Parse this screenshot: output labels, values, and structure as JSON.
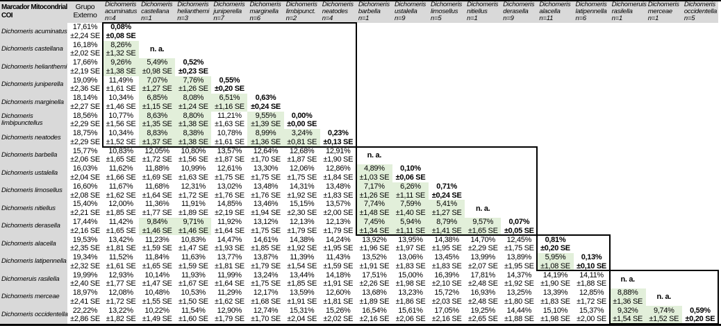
{
  "table": {
    "corner_header": "Marcador Mitocondrial COI",
    "outgroup_header": "Grupo Externo",
    "na_label": "n. a.",
    "se_suffix": "SE",
    "highlight_rule_percent_below": 10,
    "colors": {
      "header_gray": "#d9d9d9",
      "highlight_green": "#e2efda",
      "border_black": "#000000",
      "cell_white": "#ffffff"
    },
    "species": [
      {
        "genus": "Dichomeris",
        "epithet": "acuminatus",
        "n": "n=4",
        "row_label": [
          "Dichomeris acuminatus"
        ]
      },
      {
        "genus": "Dichomeris",
        "epithet": "castellana",
        "n": "n=1",
        "row_label": [
          "Dichomeris castellana"
        ]
      },
      {
        "genus": "Dichomeris",
        "epithet": "helianthemi",
        "n": "n=3",
        "row_label": [
          "Dichomeris helianthemi"
        ]
      },
      {
        "genus": "Dichomeris",
        "epithet": "juniperella",
        "n": "n=7",
        "row_label": [
          "Dichomeris juniperella"
        ]
      },
      {
        "genus": "Dichomeris",
        "epithet": "marginella",
        "n": "n=6",
        "row_label": [
          "Dichomeris marginella"
        ]
      },
      {
        "genus": "Dichomeris",
        "epithet": "limbipunct.",
        "n": "n=2",
        "row_label": [
          "Dichomeris",
          "limbipunctellus"
        ]
      },
      {
        "genus": "Dichomeris",
        "epithet": "neatodes",
        "n": "n=4",
        "row_label": [
          "Dichomeris neatodes"
        ]
      },
      {
        "genus": "Dichomeris",
        "epithet": "barbella",
        "n": "n=1",
        "row_label": [
          "Dichomeris barbella"
        ]
      },
      {
        "genus": "Dichomeris",
        "epithet": "ustalella",
        "n": "n=9",
        "row_label": [
          "Dichomeris ustalella"
        ]
      },
      {
        "genus": "Dichomeris",
        "epithet": "limosellus",
        "n": "n=5",
        "row_label": [
          "Dichomeris limosellus"
        ]
      },
      {
        "genus": "Dichomeris",
        "epithet": "nitiellus",
        "n": "n=1",
        "row_label": [
          "Dichomeris nitiellus"
        ]
      },
      {
        "genus": "Dichomeris",
        "epithet": "derasella",
        "n": "n=9",
        "row_label": [
          "Dichomeris derasella"
        ]
      },
      {
        "genus": "Dichomeris",
        "epithet": "alacella",
        "n": "n=11",
        "row_label": [
          "Dichomeris alacella"
        ]
      },
      {
        "genus": "Dichomeris",
        "epithet": "latipennella",
        "n": "n=6",
        "row_label": [
          "Dichomeris latipennella"
        ]
      },
      {
        "genus": "Dichomeruis",
        "epithet": "rasilella",
        "n": "n=1",
        "row_label": [
          "Dichomeruis rasilella"
        ]
      },
      {
        "genus": "Dichomeris",
        "epithet": "merceae",
        "n": "n=1",
        "row_label": [
          "Dichomeris merceae"
        ]
      },
      {
        "genus": "Dichomeris",
        "epithet": "occidentella",
        "n": "n=5",
        "row_label": [
          "Dichomeris occidentella"
        ]
      }
    ],
    "outgroup_column": [
      [
        "17,61%",
        "±2,24 SE"
      ],
      [
        "16,18%",
        "±2,02 SE"
      ],
      [
        "17,66%",
        "±2,19 SE"
      ],
      [
        "19,09%",
        "±2,36 SE"
      ],
      [
        "18,14%",
        "±2,27 SE"
      ],
      [
        "18,56%",
        "±2,29 SE"
      ],
      [
        "18,75%",
        "±2,29 SE"
      ],
      [
        "15,77%",
        "±2,06 SE"
      ],
      [
        "16,03%",
        "±2,04 SE"
      ],
      [
        "16,60%",
        "±2,08 SE"
      ],
      [
        "15,40%",
        "±2,21 SE"
      ],
      [
        "17,44%",
        "±2,16 SE"
      ],
      [
        "19,53%",
        "±2,35 SE"
      ],
      [
        "19,34%",
        "±2,32 SE"
      ],
      [
        "19,99%",
        "±2,40 SE"
      ],
      [
        "18,97%",
        "±2,41 SE"
      ],
      [
        "22,22%",
        "±2,86 SE"
      ]
    ],
    "diagonal": [
      [
        "0,08%",
        "±0,08 SE"
      ],
      "n. a.",
      [
        "0,52%",
        "±0,23 SE"
      ],
      [
        "0,55%",
        "±0,20 SE"
      ],
      [
        "0,63%",
        "±0,24 SE"
      ],
      [
        "0,00%",
        "±0,00 SE"
      ],
      [
        "0,23%",
        "±0,13 SE"
      ],
      "n. a.",
      [
        "0,10%",
        "±0,06 SE"
      ],
      [
        "0,71%",
        "±0,24 SE"
      ],
      "n. a.",
      [
        "0,07%",
        "±0,05 SE"
      ],
      [
        "0,81%",
        "±0,20 SE"
      ],
      [
        "0,13%",
        "±0,10 SE"
      ],
      "n. a.",
      "n. a.",
      [
        "0,59%",
        "±0,20 SE"
      ]
    ],
    "pairwise_rows": [
      [],
      [
        [
          "8,26%",
          "±1,32 SE"
        ]
      ],
      [
        [
          "9,26%",
          "±1,38 SE"
        ],
        [
          "5,49%",
          "±0,98 SE"
        ]
      ],
      [
        [
          "11,49%",
          "±1,61 SE"
        ],
        [
          "7,07%",
          "±1,27 SE"
        ],
        [
          "7,76%",
          "±1,26 SE"
        ]
      ],
      [
        [
          "10,34%",
          "±1,46 SE"
        ],
        [
          "6,85%",
          "±1,15 SE"
        ],
        [
          "8,08%",
          "±1,24 SE"
        ],
        [
          "6,51%",
          "±1,16 SE"
        ]
      ],
      [
        [
          "10,77%",
          "±1,56 SE"
        ],
        [
          "8,63%",
          "±1,35 SE"
        ],
        [
          "8,80%",
          "±1,38 SE"
        ],
        [
          "11,21%",
          "±1,63 SE"
        ],
        [
          "9,55%",
          "±1,39 SE"
        ]
      ],
      [
        [
          "10,34%",
          "±1,52 SE"
        ],
        [
          "8,83%",
          "±1,37 SE"
        ],
        [
          "8,38%",
          "±1,38 SE"
        ],
        [
          "10,78%",
          "±1,61 SE"
        ],
        [
          "8,99%",
          "±1,36 SE"
        ],
        [
          "3,24%",
          "±0,81 SE"
        ]
      ],
      [
        [
          "10,83%",
          "±1,65 SE"
        ],
        [
          "12,05%",
          "±1,72 SE"
        ],
        [
          "10,80%",
          "±1,56 SE"
        ],
        [
          "13,57%",
          "±1,87 SE"
        ],
        [
          "12,64%",
          "±1,70 SE"
        ],
        [
          "12,68%",
          "±1,87 SE"
        ],
        [
          "12,91%",
          "±1,90 SE"
        ]
      ],
      [
        [
          "11,62%",
          "±1,66 SE"
        ],
        [
          "11,88%",
          "±1,69 SE"
        ],
        [
          "10,99%",
          "±1,63 SE"
        ],
        [
          "12,61%",
          "±1,75 SE"
        ],
        [
          "13,30%",
          "±1,75 SE"
        ],
        [
          "12,06%",
          "±1,75 SE"
        ],
        [
          "12,86%",
          "±1,84 SE"
        ],
        [
          "4,89%",
          "±1,03 SE"
        ]
      ],
      [
        [
          "11,67%",
          "±1,62 SE"
        ],
        [
          "11,68%",
          "±1,64 SE"
        ],
        [
          "12,31%",
          "±1,72 SE"
        ],
        [
          "13,02%",
          "±1,76 SE"
        ],
        [
          "13,48%",
          "±1,76 SE"
        ],
        [
          "14,31%",
          "±1,92 SE"
        ],
        [
          "13,48%",
          "±1,83 SE"
        ],
        [
          "7,17%",
          "±1,26 SE"
        ],
        [
          "6,26%",
          "±1,11 SE"
        ]
      ],
      [
        [
          "12,00%",
          "±1,85 SE"
        ],
        [
          "11,36%",
          "±1,77 SE"
        ],
        [
          "11,91%",
          "±1,89 SE"
        ],
        [
          "14,85%",
          "±2,19 SE"
        ],
        [
          "13,46%",
          "±1,94 SE"
        ],
        [
          "15,15%",
          "±2,30 SE"
        ],
        [
          "13,57%",
          "±2,00 SE"
        ],
        [
          "7,74%",
          "±1,48 SE"
        ],
        [
          "7,59%",
          "±1,40 SE"
        ],
        [
          "5,41%",
          "±1,27 SE"
        ]
      ],
      [
        [
          "11,42%",
          "±1,65 SE"
        ],
        [
          "9,84%",
          "±1,46 SE"
        ],
        [
          "9,71%",
          "±1,46 SE"
        ],
        [
          "11,92%",
          "±1,64 SE"
        ],
        [
          "13,12%",
          "±1,75 SE"
        ],
        [
          "12,13%",
          "±1,79 SE"
        ],
        [
          "12,13%",
          "±1,79 SE"
        ],
        [
          "7,45%",
          "±1,34 SE"
        ],
        [
          "5,94%",
          "±1,11 SE"
        ],
        [
          "8,79%",
          "±1,41 SE"
        ],
        [
          "9,57%",
          "±1,65 SE"
        ]
      ],
      [
        [
          "13,42%",
          "±1,81 SE"
        ],
        [
          "11,23%",
          "±1,59 SE"
        ],
        [
          "10,83%",
          "±1,47 SE"
        ],
        [
          "14,47%",
          "±1,93 SE"
        ],
        [
          "14,61%",
          "±1,85 SE"
        ],
        [
          "14,38%",
          "±1,92 SE"
        ],
        [
          "14,24%",
          "±1,95 SE"
        ],
        [
          "13,92%",
          "±1,96 SE"
        ],
        [
          "13,95%",
          "±1,97 SE"
        ],
        [
          "14,38%",
          "±1,95 SE"
        ],
        [
          "14,70%",
          "±2,29 SE"
        ],
        [
          "12,45%",
          "±1,75 SE"
        ]
      ],
      [
        [
          "11,52%",
          "±1,61 SE"
        ],
        [
          "11,84%",
          "±1,65 SE"
        ],
        [
          "11,63%",
          "±1,59 SE"
        ],
        [
          "13,77%",
          "±1,81 SE"
        ],
        [
          "13,87%",
          "±1,79 SE"
        ],
        [
          "11,39%",
          "±1,54 SE"
        ],
        [
          "11,43%",
          "±1,59 SE"
        ],
        [
          "13,52%",
          "±1,91 SE"
        ],
        [
          "13,06%",
          "±1,83 SE"
        ],
        [
          "13,45%",
          "±1,83 SE"
        ],
        [
          "13,99%",
          "±2,07 SE"
        ],
        [
          "13,89%",
          "±1,95 SE"
        ],
        [
          "5,95%",
          "±1,08 SE"
        ]
      ],
      [
        [
          "12,93%",
          "±1,77 SE"
        ],
        [
          "10,14%",
          "±1,47 SE"
        ],
        [
          "11,93%",
          "±1,67 SE"
        ],
        [
          "11,99%",
          "±1,64 SE"
        ],
        [
          "13,24%",
          "±1,75 SE"
        ],
        [
          "13,44%",
          "±1,85 SE"
        ],
        [
          "14,18%",
          "±1,91 SE"
        ],
        [
          "17,51%",
          "±2,26 SE"
        ],
        [
          "15,00%",
          "±1,98 SE"
        ],
        [
          "16,39%",
          "±2,10 SE"
        ],
        [
          "17,81%",
          "±2,48 SE"
        ],
        [
          "14,37%",
          "±1,92 SE"
        ],
        [
          "14,19%",
          "±1,90 SE"
        ],
        [
          "14,11%",
          "±1,88 SE"
        ]
      ],
      [
        [
          "12,08%",
          "±1,72 SE"
        ],
        [
          "10,48%",
          "±1,55 SE"
        ],
        [
          "10,53%",
          "±1,50 SE"
        ],
        [
          "11,29%",
          "±1,62 SE"
        ],
        [
          "12,17%",
          "±1,68 SE"
        ],
        [
          "13,59%",
          "±1,91 SE"
        ],
        [
          "12,60%",
          "±1,81 SE"
        ],
        [
          "13,68%",
          "±1,89 SE"
        ],
        [
          "13,23%",
          "±1,86 SE"
        ],
        [
          "15,72%",
          "±2,03 SE"
        ],
        [
          "16,93%",
          "±2,48 SE"
        ],
        [
          "13,25%",
          "±1,80 SE"
        ],
        [
          "13,39%",
          "±1,83 SE"
        ],
        [
          "12,85%",
          "±1,72 SE"
        ],
        [
          "8,88%",
          "±1,36 SE"
        ]
      ],
      [
        [
          "13,22%",
          "±1,82 SE"
        ],
        [
          "10,22%",
          "±1,49 SE"
        ],
        [
          "11,54%",
          "±1,60 SE"
        ],
        [
          "12,90%",
          "±1,79 SE"
        ],
        [
          "12,74%",
          "±1,70 SE"
        ],
        [
          "15,31%",
          "±2,04 SE"
        ],
        [
          "15,26%",
          "±2,02 SE"
        ],
        [
          "16,54%",
          "±2,16 SE"
        ],
        [
          "15,61%",
          "±2,06 SE"
        ],
        [
          "17,05%",
          "±2,16 SE"
        ],
        [
          "19,25%",
          "±2,65 SE"
        ],
        [
          "14,44%",
          "±1,88 SE"
        ],
        [
          "15,10%",
          "±1,98 SE"
        ],
        [
          "15,37%",
          "±2,00 SE"
        ],
        [
          "9,32%",
          "±1,54 SE"
        ],
        [
          "9,74%",
          "±1,52 SE"
        ]
      ]
    ],
    "group_boxes": [
      {
        "first_species": 0,
        "last_species": 6
      },
      {
        "first_species": 7,
        "last_species": 11
      },
      {
        "first_species": 12,
        "last_species": 13
      },
      {
        "first_species": 14,
        "last_species": 16
      }
    ]
  }
}
